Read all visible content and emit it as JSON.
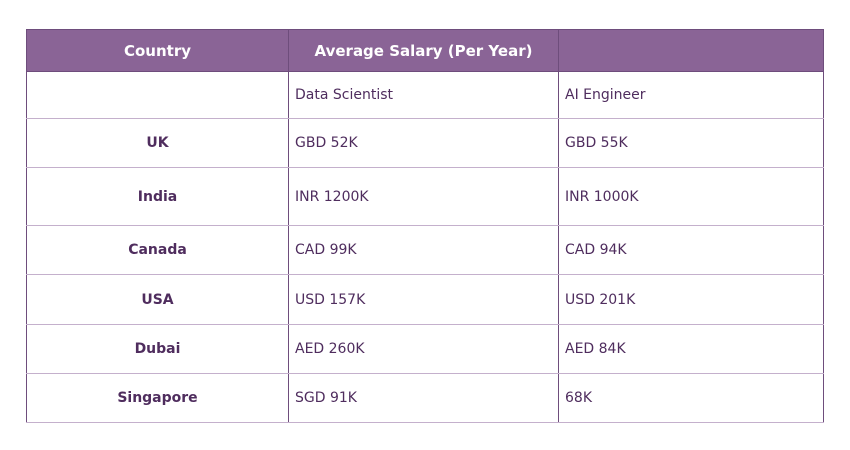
{
  "headers": [
    "Country",
    "Average Salary (Per Year)",
    ""
  ],
  "subheader": [
    "",
    "Data Scientist",
    "AI Engineer"
  ],
  "rows": [
    {
      "country": "UK",
      "ds": "GBD 52K",
      "ai": "GBD 55K"
    },
    {
      "country": "India",
      "ds": "INR 1200K",
      "ai": "INR 1000K"
    },
    {
      "country": "Canada",
      "ds": "CAD 99K",
      "ai": "CAD 94K"
    },
    {
      "country": "USA",
      "ds": "USD 157K",
      "ai": "USD 201K"
    },
    {
      "country": "Dubai",
      "ds": "AED 260K",
      "ai": "AED 84K"
    },
    {
      "country": "Singapore",
      "ds": "SGD 91K",
      "ai": "68K"
    }
  ]
}
